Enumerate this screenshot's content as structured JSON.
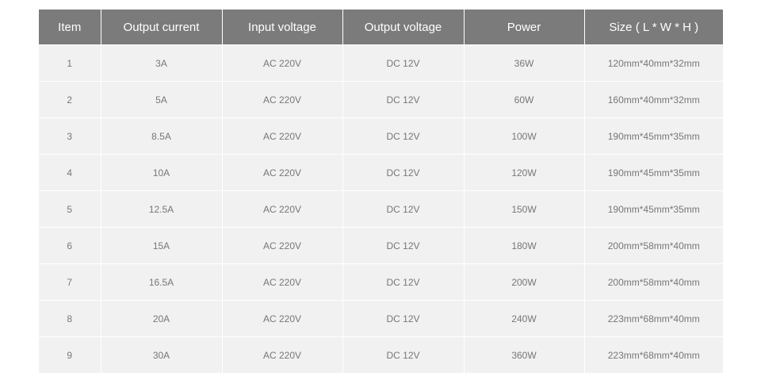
{
  "table": {
    "header": [
      "Item",
      "Output current",
      "Input voltage",
      "Output voltage",
      "Power",
      "Size ( L * W * H )"
    ],
    "rows": [
      [
        "1",
        "3A",
        "AC 220V",
        "DC 12V",
        "36W",
        "120mm*40mm*32mm"
      ],
      [
        "2",
        "5A",
        "AC 220V",
        "DC 12V",
        "60W",
        "160mm*40mm*32mm"
      ],
      [
        "3",
        "8.5A",
        "AC 220V",
        "DC 12V",
        "100W",
        "190mm*45mm*35mm"
      ],
      [
        "4",
        "10A",
        "AC 220V",
        "DC 12V",
        "120W",
        "190mm*45mm*35mm"
      ],
      [
        "5",
        "12.5A",
        "AC 220V",
        "DC 12V",
        "150W",
        "190mm*45mm*35mm"
      ],
      [
        "6",
        "15A",
        "AC 220V",
        "DC 12V",
        "180W",
        "200mm*58mm*40mm"
      ],
      [
        "7",
        "16.5A",
        "AC 220V",
        "DC 12V",
        "200W",
        "200mm*58mm*40mm"
      ],
      [
        "8",
        "20A",
        "AC 220V",
        "DC 12V",
        "240W",
        "223mm*68mm*40mm"
      ],
      [
        "9",
        "30A",
        "AC 220V",
        "DC 12V",
        "360W",
        "223mm*68mm*40mm"
      ]
    ]
  }
}
